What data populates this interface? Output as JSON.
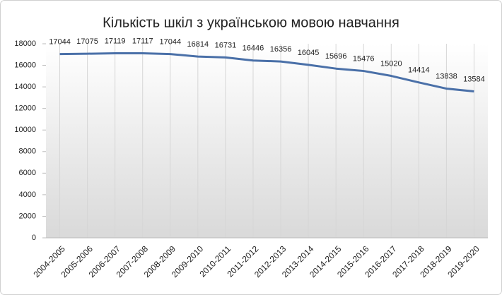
{
  "chart_data": {
    "type": "line",
    "title": "Кількість шкіл з українською мовою навчання",
    "categories": [
      "2004-2005",
      "2005-2006",
      "2006-2007",
      "2007-2008",
      "2008-2009",
      "2009-2010",
      "2010-2011",
      "2011-2012",
      "2012-2013",
      "2013-2014",
      "2014-2015",
      "2015-2016",
      "2016-2017",
      "2017-2018",
      "2018-2019",
      "2019-2020"
    ],
    "values": [
      17044,
      17075,
      17119,
      17117,
      17044,
      16814,
      16731,
      16446,
      16356,
      16045,
      15696,
      15476,
      15020,
      14414,
      13838,
      13584
    ],
    "color": "#4a70a8",
    "ylim": [
      0,
      18000
    ],
    "yticks": [
      0,
      2000,
      4000,
      6000,
      8000,
      10000,
      12000,
      14000,
      16000,
      18000
    ],
    "grid": true
  }
}
